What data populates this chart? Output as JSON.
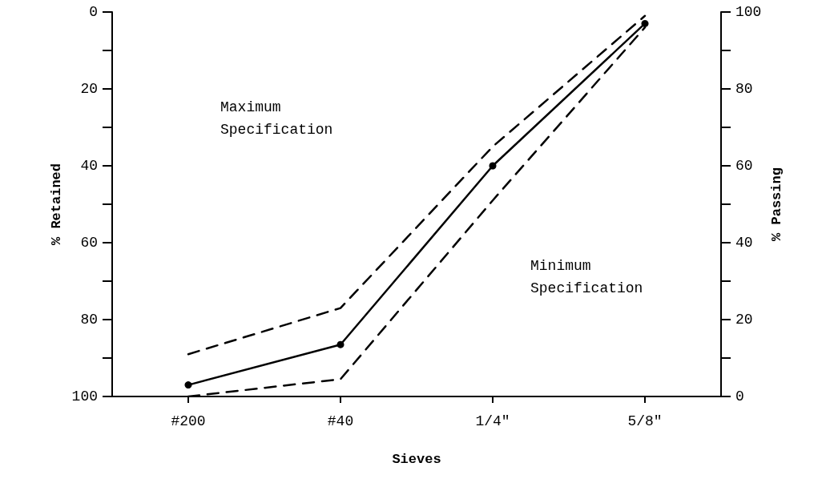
{
  "chart_data": {
    "type": "line",
    "xlabel": "Sieves",
    "ylabel": "% Retained",
    "y2label": "% Passing",
    "categories": [
      "#200",
      "#40",
      "1/4\"",
      "5/8\""
    ],
    "series": [
      {
        "color": "#000000",
        "values": [
          97,
          86.5,
          40,
          3
        ],
        "marker": "circle",
        "line_style": "solid"
      },
      {
        "color": "#000000",
        "values": [
          89,
          77,
          35,
          1
        ],
        "marker": "none",
        "line_style": "dashed"
      },
      {
        "color": "#000000",
        "values": [
          100,
          95.5,
          49,
          4
        ],
        "marker": "none",
        "line_style": "dashed"
      }
    ],
    "ylim": [
      100,
      0
    ],
    "yticks": [
      0,
      {
        "value": 10,
        "label": null
      },
      20,
      {
        "value": 30,
        "label": null
      },
      40,
      {
        "value": 50,
        "label": null
      },
      60,
      {
        "value": 70,
        "label": null
      },
      80,
      {
        "value": 90,
        "label": null
      },
      100
    ],
    "y2lim": [
      0,
      100
    ],
    "y2ticks": [
      0,
      {
        "value": 10,
        "label": null
      },
      20,
      {
        "value": 30,
        "label": null
      },
      40,
      {
        "value": 50,
        "label": null
      },
      60,
      {
        "value": 70,
        "label": null
      },
      80,
      {
        "value": 90,
        "label": null
      },
      100
    ],
    "annotations": [
      "Maximum\nSpecification",
      "Minimum\nSpecification"
    ],
    "grid": false
  }
}
